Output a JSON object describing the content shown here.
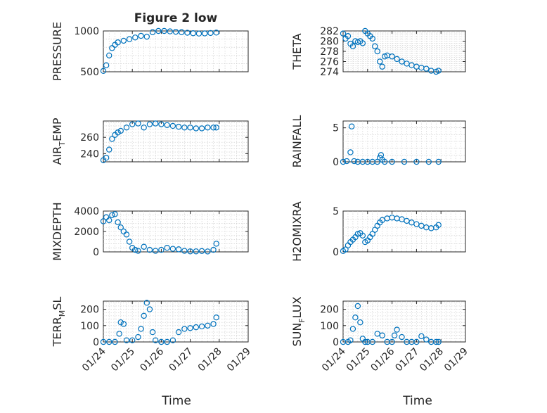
{
  "figure": {
    "title": "Figure 2 low",
    "xlabel": "Time",
    "marker_color": "#0072BD"
  },
  "chart_data": [
    {
      "type": "scatter",
      "name": "pressure",
      "ylabel": "PRESSURE",
      "xlim": [
        0,
        5
      ],
      "ylim": [
        500,
        1000
      ],
      "yticks": [
        500,
        1000
      ],
      "x": [
        0,
        0.1,
        0.2,
        0.3,
        0.4,
        0.5,
        0.7,
        0.9,
        1.1,
        1.3,
        1.5,
        1.7,
        1.9,
        2.1,
        2.3,
        2.5,
        2.7,
        2.9,
        3.1,
        3.3,
        3.5,
        3.7,
        3.9
      ],
      "y": [
        510,
        580,
        700,
        790,
        830,
        860,
        880,
        900,
        920,
        940,
        930,
        985,
        1000,
        1000,
        995,
        990,
        985,
        978,
        972,
        968,
        970,
        975,
        980
      ]
    },
    {
      "type": "scatter",
      "name": "theta",
      "ylabel": "THETA",
      "xlim": [
        0,
        5
      ],
      "ylim": [
        274,
        282
      ],
      "yticks": [
        274,
        276,
        278,
        280,
        282
      ],
      "x": [
        0,
        0.1,
        0.2,
        0.3,
        0.4,
        0.5,
        0.6,
        0.7,
        0.8,
        0.9,
        1.0,
        1.1,
        1.2,
        1.3,
        1.4,
        1.5,
        1.6,
        1.7,
        1.8,
        2.0,
        2.2,
        2.4,
        2.6,
        2.8,
        3.0,
        3.2,
        3.4,
        3.6,
        3.8,
        3.9
      ],
      "y": [
        281.5,
        280.5,
        281,
        279.5,
        279,
        280,
        279.8,
        280,
        279.6,
        282,
        281.5,
        281,
        280.5,
        279,
        278,
        276,
        275,
        277,
        277.2,
        277,
        276.5,
        276,
        275.6,
        275.3,
        275,
        274.8,
        274.6,
        274.2,
        274,
        274.2
      ]
    },
    {
      "type": "scatter",
      "name": "air-temp",
      "ylabel": "AIR_TEMP",
      "ylabel_main": "AIR",
      "ylabel_sub": "T",
      "ylabel_tail": "EMP",
      "xlim": [
        0,
        5
      ],
      "ylim": [
        230,
        280
      ],
      "yticks": [
        240,
        260
      ],
      "x": [
        0,
        0.1,
        0.2,
        0.3,
        0.4,
        0.5,
        0.6,
        0.8,
        1.0,
        1.2,
        1.4,
        1.6,
        1.8,
        2.0,
        2.2,
        2.4,
        2.6,
        2.8,
        3.0,
        3.2,
        3.4,
        3.6,
        3.8,
        3.9
      ],
      "y": [
        232,
        235,
        245,
        258,
        263,
        266,
        268,
        272,
        276,
        277,
        272,
        276,
        277,
        276,
        275,
        274,
        273,
        272,
        272,
        271,
        271,
        272,
        272,
        272
      ]
    },
    {
      "type": "scatter",
      "name": "rainfall",
      "ylabel": "RAINFALL",
      "xlim": [
        0,
        5
      ],
      "ylim": [
        0,
        6
      ],
      "yticks": [
        0,
        5
      ],
      "x": [
        0,
        0.15,
        0.3,
        0.35,
        0.45,
        0.6,
        0.8,
        1.0,
        1.2,
        1.4,
        1.5,
        1.55,
        1.6,
        1.7,
        2.0,
        2.5,
        3.0,
        3.5,
        3.9
      ],
      "y": [
        0,
        0.1,
        1.4,
        5.2,
        0.1,
        0,
        0,
        0,
        0,
        0,
        0.6,
        1.0,
        0.3,
        0,
        0,
        0,
        0,
        0,
        0
      ]
    },
    {
      "type": "scatter",
      "name": "mixdepth",
      "ylabel": "MIXDEPTH",
      "xlim": [
        0,
        5
      ],
      "ylim": [
        0,
        4000
      ],
      "yticks": [
        0,
        2000,
        4000
      ],
      "x": [
        0,
        0.1,
        0.2,
        0.3,
        0.4,
        0.5,
        0.6,
        0.7,
        0.8,
        0.9,
        1.0,
        1.1,
        1.2,
        1.4,
        1.6,
        1.8,
        2.0,
        2.2,
        2.4,
        2.6,
        2.8,
        3.0,
        3.2,
        3.4,
        3.6,
        3.8,
        3.9
      ],
      "y": [
        3000,
        3400,
        3100,
        3600,
        3700,
        2900,
        2400,
        2000,
        1700,
        1000,
        400,
        200,
        100,
        500,
        200,
        100,
        200,
        400,
        300,
        250,
        100,
        50,
        50,
        80,
        40,
        200,
        800
      ]
    },
    {
      "type": "scatter",
      "name": "h2omixra",
      "ylabel": "H2OMIXRA",
      "xlim": [
        0,
        5
      ],
      "ylim": [
        0,
        5
      ],
      "yticks": [
        0,
        5
      ],
      "x": [
        0,
        0.1,
        0.2,
        0.3,
        0.4,
        0.5,
        0.6,
        0.7,
        0.8,
        0.9,
        1.0,
        1.1,
        1.2,
        1.3,
        1.4,
        1.5,
        1.6,
        1.8,
        2.0,
        2.2,
        2.4,
        2.6,
        2.8,
        3.0,
        3.2,
        3.4,
        3.6,
        3.8,
        3.9
      ],
      "y": [
        0.1,
        0.3,
        0.8,
        1.2,
        1.5,
        1.8,
        2.2,
        2.3,
        2.0,
        1.2,
        1.4,
        1.8,
        2.2,
        2.7,
        3.2,
        3.6,
        3.9,
        4.1,
        4.2,
        4.1,
        4.0,
        3.8,
        3.6,
        3.4,
        3.2,
        3.0,
        2.9,
        3.0,
        3.3
      ]
    },
    {
      "type": "scatter",
      "name": "terr-msl",
      "ylabel": "TERR_MSL",
      "ylabel_main": "TERR",
      "ylabel_sub": "M",
      "ylabel_tail": "SL",
      "xlim": [
        0,
        5
      ],
      "ylim": [
        0,
        250
      ],
      "yticks": [
        0,
        100,
        200
      ],
      "x": [
        0,
        0.2,
        0.4,
        0.55,
        0.6,
        0.7,
        0.8,
        1.0,
        1.2,
        1.3,
        1.4,
        1.5,
        1.6,
        1.7,
        1.8,
        2.0,
        2.2,
        2.4,
        2.6,
        2.8,
        3.0,
        3.2,
        3.4,
        3.6,
        3.8,
        3.9
      ],
      "y": [
        0,
        0,
        0,
        50,
        120,
        110,
        10,
        10,
        30,
        80,
        160,
        240,
        200,
        60,
        10,
        0,
        0,
        10,
        60,
        80,
        85,
        90,
        95,
        100,
        110,
        150
      ]
    },
    {
      "type": "scatter",
      "name": "sun-flux",
      "ylabel": "SUN_FLUX",
      "ylabel_main": "SUN",
      "ylabel_sub": "F",
      "ylabel_tail": "LUX",
      "xlim": [
        0,
        5
      ],
      "ylim": [
        0,
        250
      ],
      "yticks": [
        0,
        100,
        200
      ],
      "x": [
        0,
        0.2,
        0.3,
        0.4,
        0.5,
        0.6,
        0.7,
        0.8,
        0.9,
        1.0,
        1.2,
        1.4,
        1.6,
        1.8,
        2.0,
        2.1,
        2.2,
        2.4,
        2.6,
        2.8,
        3.0,
        3.2,
        3.4,
        3.6,
        3.8,
        3.9
      ],
      "y": [
        0,
        0,
        10,
        80,
        150,
        220,
        120,
        20,
        0,
        0,
        0,
        50,
        40,
        0,
        0,
        40,
        75,
        30,
        0,
        0,
        0,
        35,
        15,
        0,
        0,
        0
      ]
    }
  ],
  "xticks": [
    {
      "value": 0,
      "label": "01/24"
    },
    {
      "value": 1,
      "label": "01/25"
    },
    {
      "value": 2,
      "label": "01/26"
    },
    {
      "value": 3,
      "label": "01/27"
    },
    {
      "value": 4,
      "label": "01/28"
    },
    {
      "value": 5,
      "label": "01/29"
    }
  ]
}
